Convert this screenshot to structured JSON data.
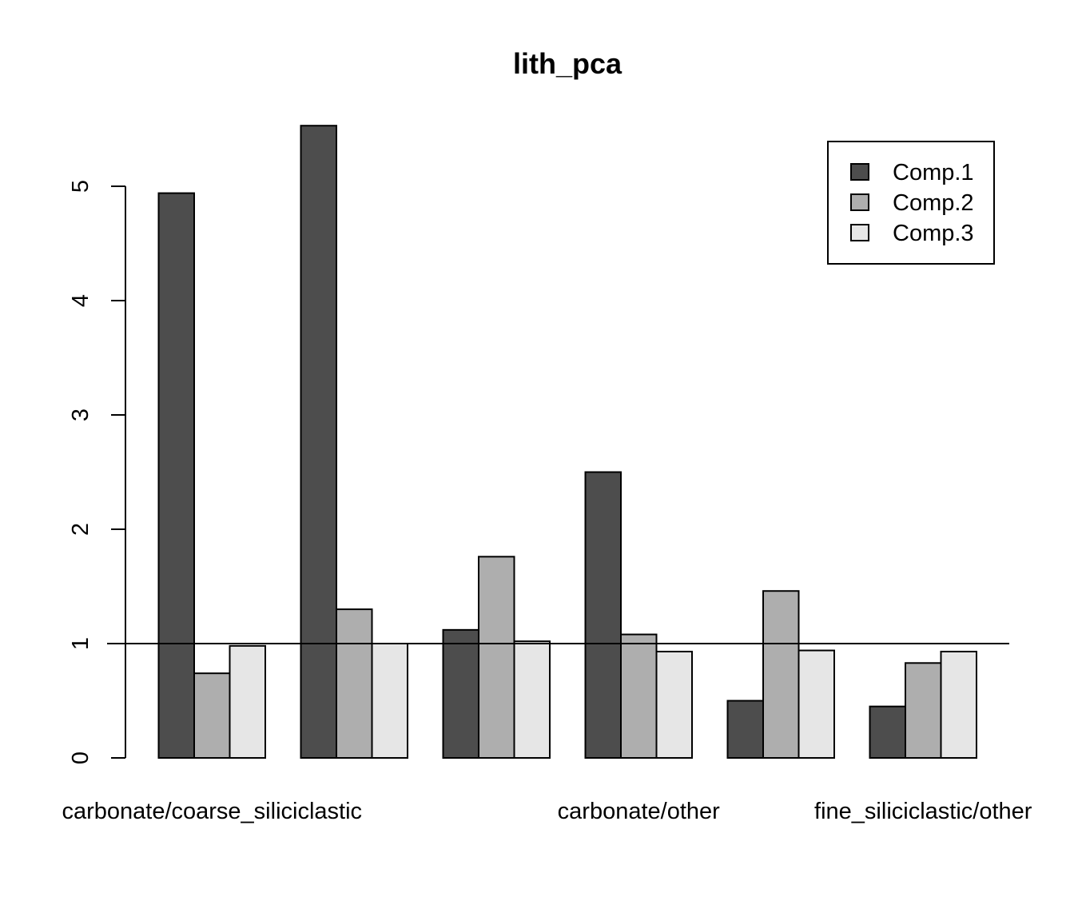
{
  "chart_data": {
    "type": "bar",
    "title": "lith_pca",
    "xlabel": "",
    "ylabel": "",
    "categories": [
      "carbonate/coarse_siliciclastic",
      "",
      "",
      "carbonate/other",
      "",
      "fine_siliciclastic/other"
    ],
    "series": [
      {
        "name": "Comp.1",
        "color": "#4d4d4d",
        "values": [
          4.94,
          5.53,
          1.12,
          2.5,
          0.5,
          0.45
        ]
      },
      {
        "name": "Comp.2",
        "color": "#aeaeae",
        "values": [
          0.74,
          1.3,
          1.76,
          1.08,
          1.46,
          0.83
        ]
      },
      {
        "name": "Comp.3",
        "color": "#e6e6e6",
        "values": [
          0.98,
          1.0,
          1.02,
          0.93,
          0.94,
          0.93
        ]
      }
    ],
    "yticks": [
      0,
      1,
      2,
      3,
      4,
      5
    ],
    "ylim": [
      0,
      5.53
    ],
    "reference_line": 1,
    "grid": false,
    "legend_position": "top-right"
  }
}
